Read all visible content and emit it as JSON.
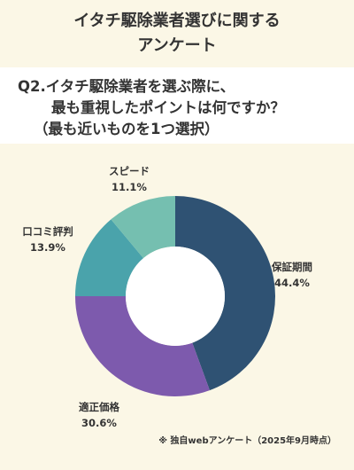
{
  "header": {
    "title_line1": "イタチ駆除業者選びに関する",
    "title_line2": "アンケート"
  },
  "question": {
    "line1": "Q2.イタチ駆除業者を選ぶ際に、",
    "line2": "最も重視したポイントは何ですか？",
    "line3": "（最も近いものを1つ選択）"
  },
  "chart_data": {
    "type": "pie",
    "donut": true,
    "slices": [
      {
        "label": "保証期間",
        "value": 44.4,
        "value_label": "44.4%",
        "color": "#2f5273"
      },
      {
        "label": "適正価格",
        "value": 30.6,
        "value_label": "30.6%",
        "color": "#7d5aad"
      },
      {
        "label": "口コミ評判",
        "value": 13.9,
        "value_label": "13.9%",
        "color": "#4aa3ab"
      },
      {
        "label": "スピード",
        "value": 11.1,
        "value_label": "11.1%",
        "color": "#75bfb0"
      }
    ]
  },
  "footnote": "※ 独自webアンケート（2025年9月時点）"
}
